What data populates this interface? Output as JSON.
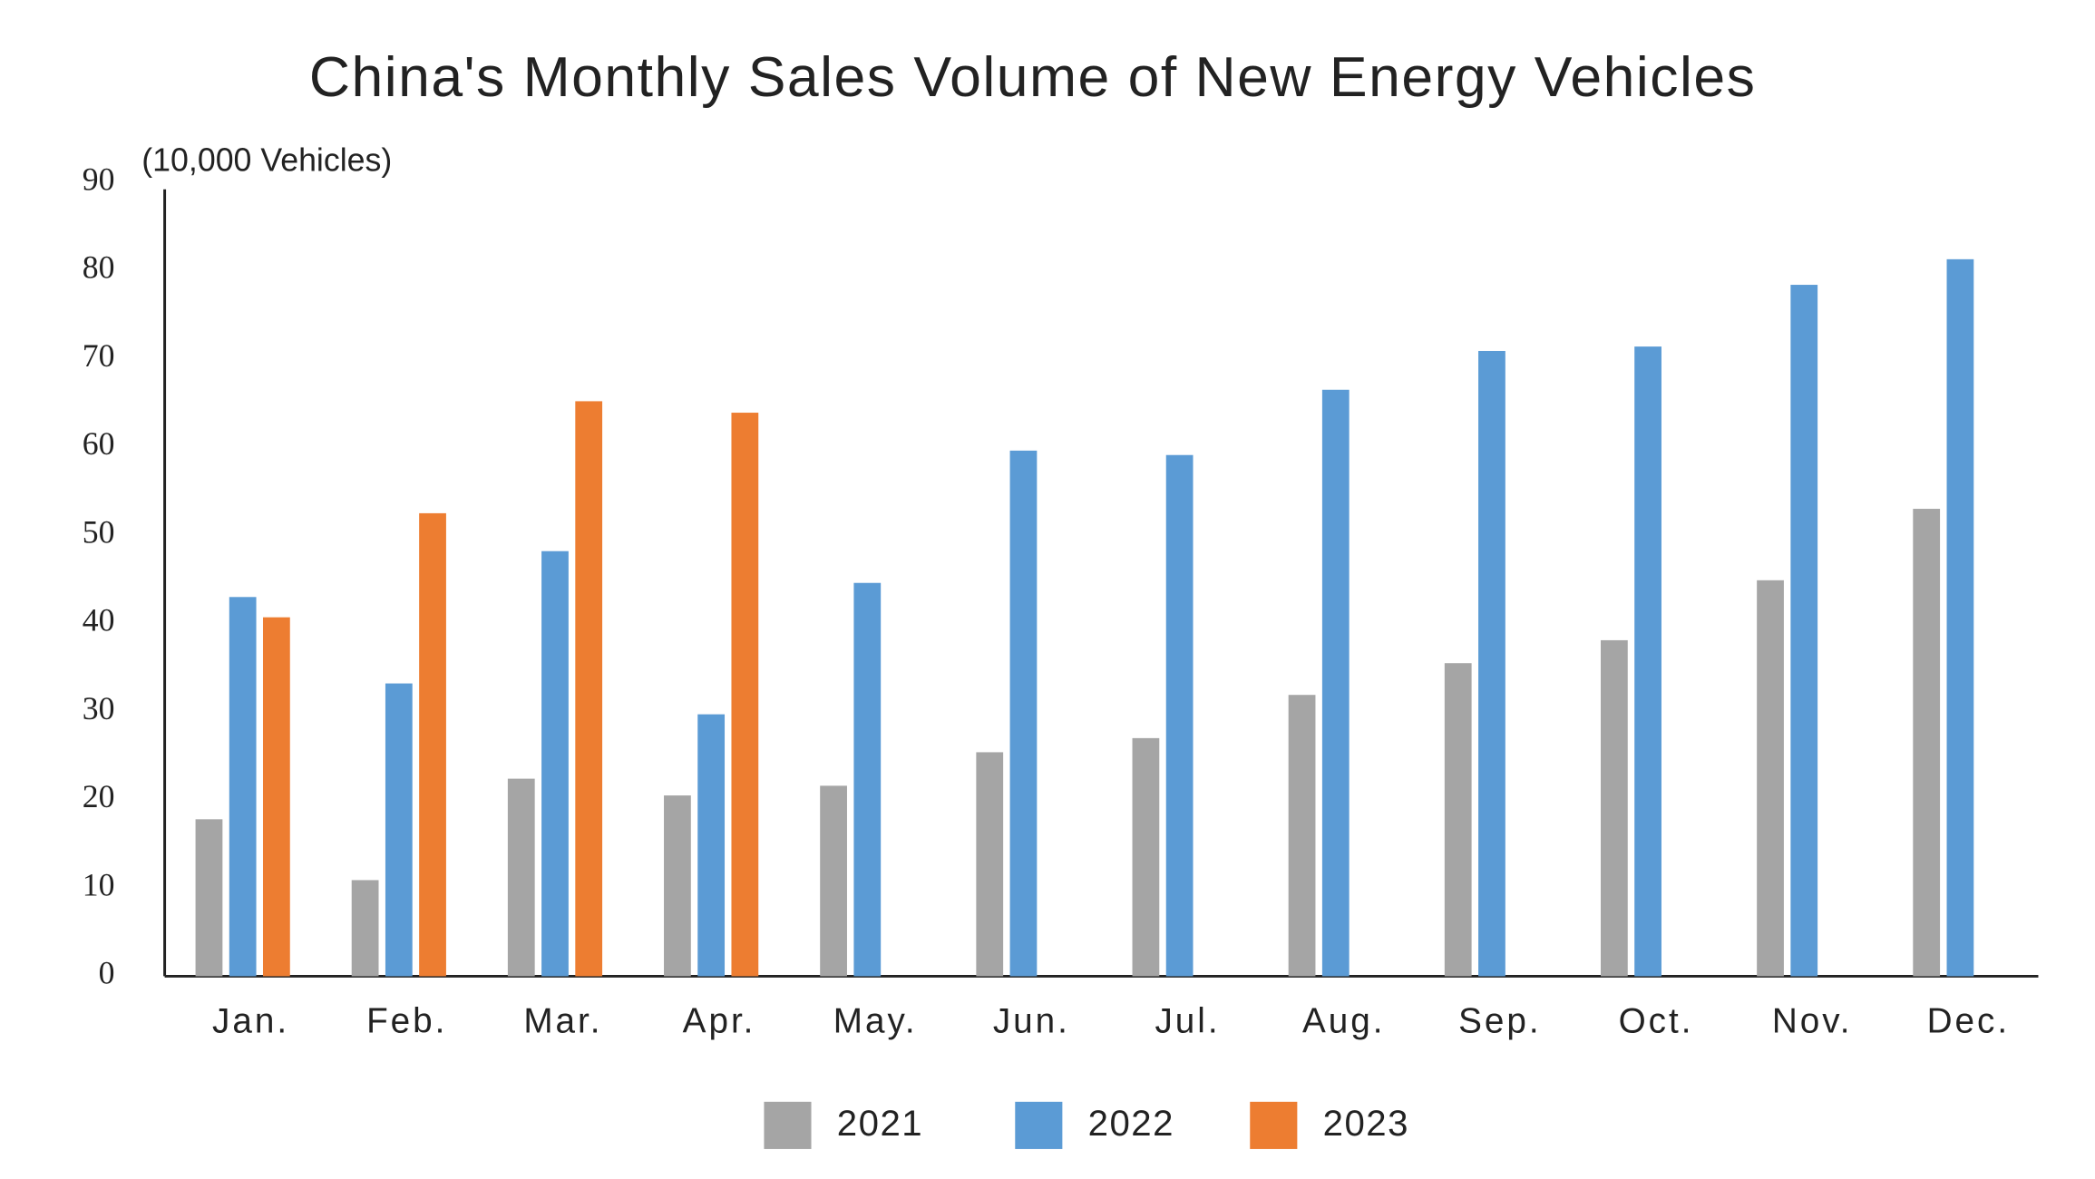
{
  "chart_data": {
    "type": "bar",
    "title": "China's Monthly Sales Volume of New Energy Vehicles",
    "y_label": "(10,000 Vehicles)",
    "categories": [
      "Jan.",
      "Feb.",
      "Mar.",
      "Apr.",
      "May.",
      "Jun.",
      "Jul.",
      "Aug.",
      "Sep.",
      "Oct.",
      "Nov.",
      "Dec."
    ],
    "series": [
      {
        "name": "2021",
        "color": "#a5a5a5",
        "values": [
          17.8,
          10.9,
          22.4,
          20.5,
          21.6,
          25.4,
          27.0,
          31.9,
          35.5,
          38.1,
          44.9,
          53.0
        ]
      },
      {
        "name": "2022",
        "color": "#5b9bd5",
        "values": [
          43.0,
          33.2,
          48.2,
          29.7,
          44.6,
          59.6,
          59.1,
          66.5,
          70.9,
          71.4,
          78.4,
          81.3
        ]
      },
      {
        "name": "2023",
        "color": "#ed7d31",
        "values": [
          40.7,
          52.5,
          65.2,
          63.9,
          null,
          null,
          null,
          null,
          null,
          null,
          null,
          null
        ]
      }
    ],
    "ylim": [
      0,
      90
    ],
    "yticks": [
      0,
      10,
      20,
      30,
      40,
      50,
      60,
      70,
      80,
      90
    ],
    "grid": false
  }
}
